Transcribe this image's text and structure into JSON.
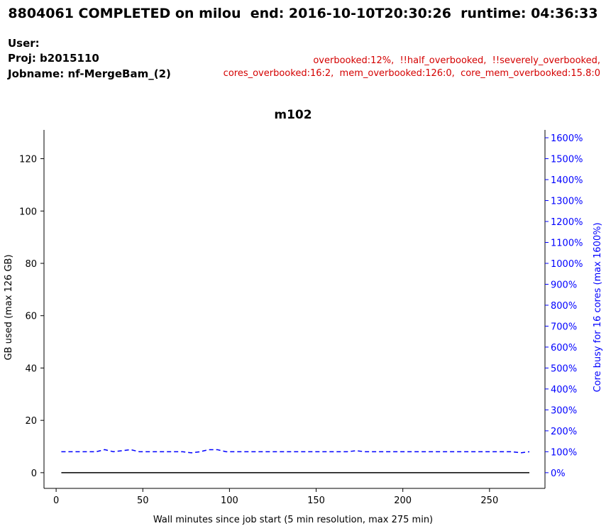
{
  "header": {
    "title": "8804061 COMPLETED on milou  end: 2016-10-10T20:30:26  runtime: 04:36:33",
    "user": "User:",
    "proj": "Proj: b2015110",
    "jobname": "Jobname: nf-MergeBam_(2)",
    "warnings_line1": "overbooked:12%,  !!half_overbooked,  !!severely_overbooked,",
    "warnings_line2": "cores_overbooked:16:2,  mem_overbooked:126:0,  core_mem_overbooked:15.8:0"
  },
  "colors": {
    "warning": "#d40000",
    "memory": "#000000",
    "cores": "#0000ff"
  },
  "chart_data": {
    "type": "line",
    "title": "m102",
    "xlabel": "Wall minutes since job start (5 min resolution, max 275 min)",
    "ylabel": "GB used (max 126 GB)",
    "y2label": "Core busy for 16 cores (max 1600%)",
    "xlim": [
      -7,
      282
    ],
    "ylim": [
      -6,
      131
    ],
    "y2lim": [
      -75,
      1637.5
    ],
    "xticks": [
      0,
      50,
      100,
      150,
      200,
      250
    ],
    "yticks": [
      0,
      20,
      40,
      60,
      80,
      100,
      120
    ],
    "y2ticks": [
      0,
      100,
      200,
      300,
      400,
      500,
      600,
      700,
      800,
      900,
      1000,
      1100,
      1200,
      1300,
      1400,
      1500,
      1600
    ],
    "y2ticklabels": [
      "0%",
      "100%",
      "200%",
      "300%",
      "400%",
      "500%",
      "600%",
      "700%",
      "800%",
      "900%",
      "1000%",
      "1100%",
      "1200%",
      "1300%",
      "1400%",
      "1500%",
      "1600%"
    ],
    "x": [
      3,
      8,
      13,
      18,
      23,
      28,
      33,
      38,
      43,
      48,
      53,
      58,
      63,
      68,
      73,
      78,
      83,
      88,
      93,
      98,
      103,
      108,
      113,
      118,
      123,
      128,
      133,
      138,
      143,
      148,
      153,
      158,
      163,
      168,
      173,
      178,
      183,
      188,
      193,
      198,
      203,
      208,
      213,
      218,
      223,
      228,
      233,
      238,
      243,
      248,
      253,
      258,
      263,
      268,
      273
    ],
    "series": [
      {
        "axis": "left",
        "style": "solid",
        "values": [
          0,
          0,
          0,
          0,
          0,
          0,
          0,
          0,
          0,
          0,
          0,
          0,
          0,
          0,
          0,
          0,
          0,
          0,
          0,
          0,
          0,
          0,
          0,
          0,
          0,
          0,
          0,
          0,
          0,
          0,
          0,
          0,
          0,
          0,
          0,
          0,
          0,
          0,
          0,
          0,
          0,
          0,
          0,
          0,
          0,
          0,
          0,
          0,
          0,
          0,
          0,
          0,
          0,
          0,
          0
        ]
      },
      {
        "axis": "right",
        "style": "dashed",
        "values": [
          100,
          100,
          100,
          100,
          100,
          110,
          100,
          105,
          110,
          100,
          100,
          100,
          100,
          100,
          100,
          95,
          100,
          110,
          110,
          100,
          100,
          100,
          100,
          100,
          100,
          100,
          100,
          100,
          100,
          100,
          100,
          100,
          100,
          100,
          105,
          100,
          100,
          100,
          100,
          100,
          100,
          100,
          100,
          100,
          100,
          100,
          100,
          100,
          100,
          100,
          100,
          100,
          100,
          95,
          100
        ]
      }
    ]
  }
}
